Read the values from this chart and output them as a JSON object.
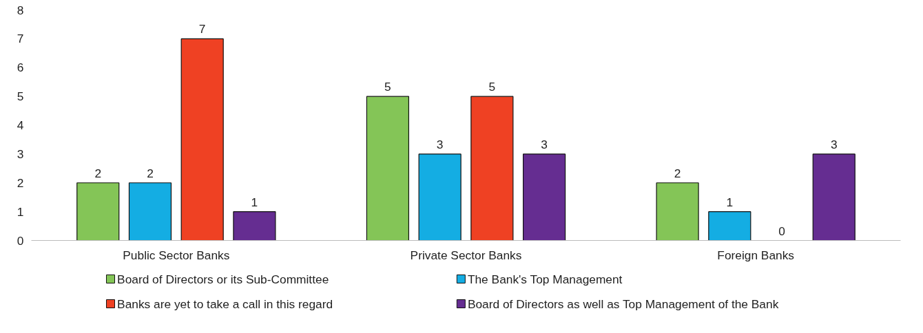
{
  "chart_data": {
    "type": "bar",
    "categories": [
      "Public Sector Banks",
      "Private Sector Banks",
      "Foreign Banks"
    ],
    "series": [
      {
        "name": "Board of Directors or its Sub-Committee",
        "color": "#84c557",
        "values": [
          2,
          5,
          2
        ]
      },
      {
        "name": "The Bank's Top Management",
        "color": "#14ade3",
        "values": [
          2,
          3,
          1
        ]
      },
      {
        "name": "Banks are yet to take a call in this regard",
        "color": "#ef4123",
        "values": [
          7,
          5,
          0
        ]
      },
      {
        "name": "Board of Directors as well as Top Management of the Bank",
        "color": "#652d91",
        "values": [
          1,
          3,
          3
        ]
      }
    ],
    "ylim": [
      0,
      8
    ],
    "yticks": [
      0,
      1,
      2,
      3,
      4,
      5,
      6,
      7,
      8
    ],
    "grid": false,
    "legend": "bottom",
    "data_labels": true
  }
}
